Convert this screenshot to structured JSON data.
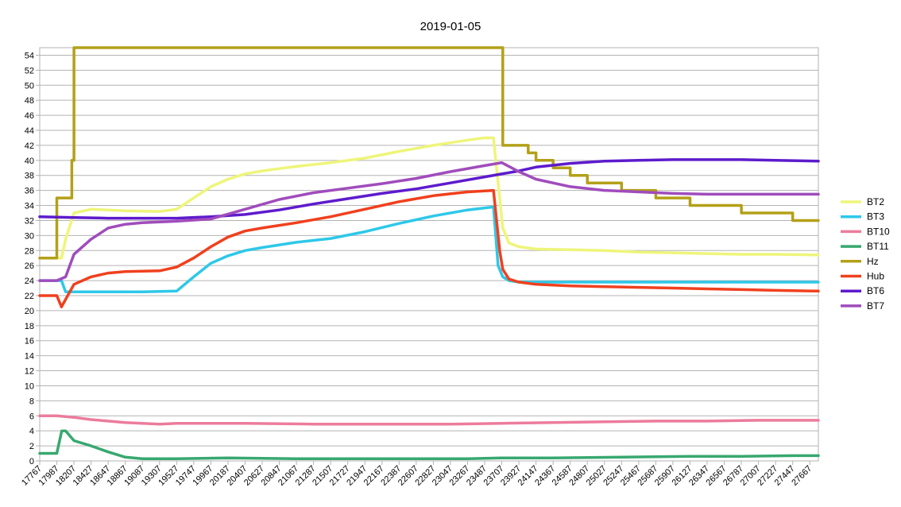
{
  "chart_data": {
    "type": "line",
    "title": "2019-01-05",
    "xlabel": "",
    "ylabel": "",
    "x_range": [
      17767,
      27777
    ],
    "ylim": [
      0,
      55
    ],
    "y_ticks": [
      0,
      2,
      4,
      6,
      8,
      10,
      12,
      14,
      16,
      18,
      20,
      22,
      24,
      26,
      28,
      30,
      32,
      34,
      36,
      38,
      40,
      42,
      44,
      46,
      48,
      50,
      52,
      54
    ],
    "x_ticks": [
      17767,
      17987,
      18207,
      18427,
      18647,
      18867,
      19087,
      19307,
      19527,
      19747,
      19967,
      20187,
      20407,
      20627,
      20847,
      21067,
      21287,
      21507,
      21727,
      21947,
      22167,
      22387,
      22607,
      22827,
      23047,
      23267,
      23487,
      23707,
      23927,
      24147,
      24367,
      24587,
      24807,
      25027,
      25247,
      25467,
      25687,
      25907,
      26127,
      26347,
      26567,
      26787,
      27007,
      27227,
      27447,
      27667
    ],
    "grid": true,
    "legend_position": "right",
    "series": [
      {
        "name": "BT2",
        "color": "#eef57a",
        "x": [
          17767,
          17987,
          18047,
          18100,
          18207,
          18427,
          18867,
          19307,
          19527,
          19747,
          19967,
          20187,
          20407,
          20627,
          20847,
          21067,
          21507,
          21947,
          22387,
          22827,
          23267,
          23487,
          23600,
          23660,
          23720,
          23800,
          23927,
          24147,
          24587,
          25027,
          25467,
          25907,
          26347,
          26787,
          27227,
          27777
        ],
        "y": [
          27,
          27,
          27,
          29.5,
          33,
          33.5,
          33.3,
          33.2,
          33.5,
          35,
          36.5,
          37.5,
          38.2,
          38.6,
          38.9,
          39.2,
          39.7,
          40.3,
          41.2,
          42,
          42.7,
          43,
          43,
          37,
          31,
          29,
          28.5,
          28.2,
          28.1,
          28,
          27.8,
          27.7,
          27.6,
          27.5,
          27.5,
          27.4
        ]
      },
      {
        "name": "BT3",
        "color": "#2ec8e8",
        "x": [
          17767,
          17987,
          18047,
          18100,
          18207,
          18647,
          19087,
          19527,
          19747,
          19967,
          20187,
          20407,
          20627,
          21067,
          21507,
          21947,
          22387,
          22827,
          23267,
          23600,
          23660,
          23720,
          23800,
          23927,
          24367,
          25027,
          25687,
          26347,
          27007,
          27777
        ],
        "y": [
          24,
          24,
          24,
          22.5,
          22.5,
          22.5,
          22.5,
          22.6,
          24.5,
          26.3,
          27.3,
          28,
          28.4,
          29.1,
          29.6,
          30.5,
          31.6,
          32.6,
          33.4,
          33.8,
          26,
          24.5,
          24,
          23.8,
          23.8,
          23.8,
          23.8,
          23.8,
          23.8,
          23.8
        ]
      },
      {
        "name": "BT10",
        "color": "#ec7c9c",
        "x": [
          17767,
          17987,
          18207,
          18427,
          18647,
          18867,
          19307,
          19527,
          20407,
          21287,
          22167,
          23047,
          23707,
          24367,
          25027,
          25687,
          26347,
          27007,
          27777
        ],
        "y": [
          6,
          6,
          5.8,
          5.5,
          5.3,
          5.1,
          4.9,
          5.0,
          5.0,
          4.9,
          4.9,
          4.9,
          5.0,
          5.1,
          5.2,
          5.3,
          5.3,
          5.4,
          5.4
        ]
      },
      {
        "name": "BT11",
        "color": "#38a870",
        "x": [
          17767,
          17987,
          18050,
          18100,
          18207,
          18427,
          18647,
          18867,
          19087,
          19527,
          20187,
          21067,
          22167,
          23267,
          23707,
          24367,
          25247,
          26127,
          26787,
          27447,
          27777
        ],
        "y": [
          1,
          1,
          4,
          4,
          2.7,
          2,
          1.2,
          0.5,
          0.3,
          0.3,
          0.4,
          0.3,
          0.3,
          0.3,
          0.4,
          0.4,
          0.5,
          0.6,
          0.6,
          0.7,
          0.7
        ]
      },
      {
        "name": "Hz",
        "color": "#b3a018",
        "x": [
          17767,
          17987,
          17987,
          18180,
          18180,
          18207,
          18207,
          23707,
          23707,
          23720,
          23720,
          24047,
          24047,
          24147,
          24147,
          24367,
          24367,
          24587,
          24587,
          24807,
          24807,
          25247,
          25247,
          25687,
          25687,
          26127,
          26127,
          26787,
          26787,
          27447,
          27447,
          27777
        ],
        "y": [
          27,
          27,
          35,
          35,
          40,
          40,
          55,
          55,
          55,
          55,
          42,
          42,
          41,
          41,
          40,
          40,
          39,
          39,
          38,
          38,
          37,
          37,
          36,
          36,
          35,
          35,
          34,
          34,
          33,
          33,
          32,
          32
        ]
      },
      {
        "name": "Hub",
        "color": "#f0401e",
        "x": [
          17767,
          17987,
          18047,
          18100,
          18207,
          18427,
          18647,
          18867,
          19307,
          19527,
          19747,
          19967,
          20187,
          20407,
          20627,
          21067,
          21507,
          21947,
          22387,
          22827,
          23267,
          23600,
          23680,
          23720,
          23800,
          23927,
          24147,
          24587,
          25027,
          25467,
          25907,
          26347,
          26787,
          27227,
          27777
        ],
        "y": [
          22,
          22,
          20.5,
          21.5,
          23.5,
          24.5,
          25,
          25.2,
          25.3,
          25.8,
          27,
          28.5,
          29.8,
          30.6,
          31,
          31.7,
          32.5,
          33.5,
          34.5,
          35.3,
          35.8,
          36,
          28,
          25.5,
          24.2,
          23.8,
          23.5,
          23.3,
          23.2,
          23.1,
          23.0,
          22.9,
          22.8,
          22.7,
          22.6
        ]
      },
      {
        "name": "BT6",
        "color": "#5d1bcc",
        "x": [
          17767,
          18207,
          18647,
          19087,
          19527,
          19967,
          20407,
          20847,
          21287,
          21727,
          22167,
          22607,
          23047,
          23487,
          23927,
          24147,
          24587,
          25027,
          25467,
          25907,
          26347,
          26787,
          27227,
          27777
        ],
        "y": [
          32.5,
          32.4,
          32.3,
          32.3,
          32.3,
          32.5,
          32.8,
          33.4,
          34.2,
          34.9,
          35.6,
          36.2,
          37,
          37.8,
          38.6,
          39.1,
          39.6,
          39.9,
          40,
          40.1,
          40.1,
          40.1,
          40,
          39.9
        ]
      },
      {
        "name": "BT7",
        "color": "#a04cbc",
        "x": [
          17767,
          17987,
          18100,
          18207,
          18427,
          18647,
          18867,
          19087,
          19527,
          19967,
          20407,
          20847,
          21287,
          21727,
          22167,
          22607,
          23047,
          23487,
          23707,
          23927,
          24147,
          24587,
          25027,
          25467,
          25907,
          26347,
          26787,
          27227,
          27777
        ],
        "y": [
          24,
          24,
          24.5,
          27.5,
          29.5,
          31,
          31.5,
          31.7,
          31.9,
          32.2,
          33.5,
          34.8,
          35.7,
          36.3,
          36.9,
          37.6,
          38.5,
          39.3,
          39.7,
          38.5,
          37.5,
          36.5,
          36,
          35.8,
          35.6,
          35.5,
          35.5,
          35.5,
          35.5
        ]
      }
    ]
  }
}
